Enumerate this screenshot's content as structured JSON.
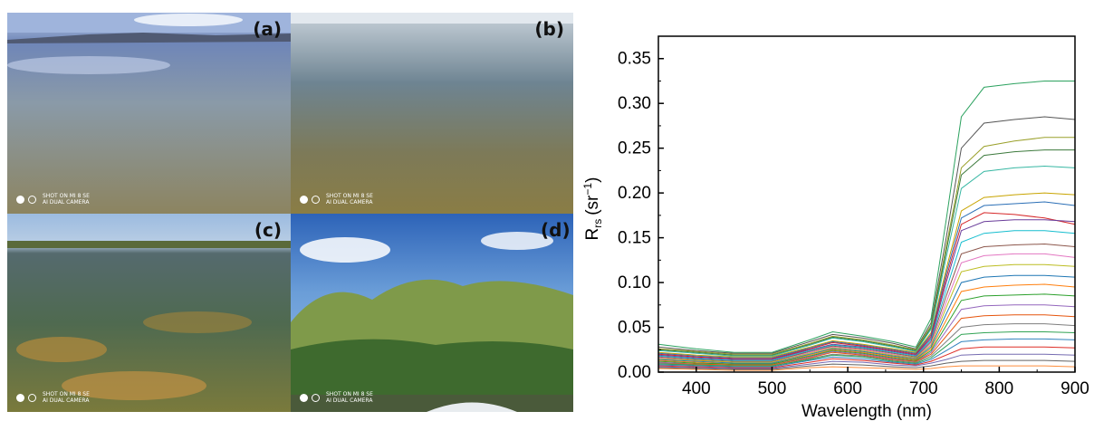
{
  "photos": {
    "panels": [
      {
        "label": "(a)",
        "watermark": [
          "SHOT ON MI 8 SE",
          "AI DUAL CAMERA"
        ]
      },
      {
        "label": "(b)",
        "watermark": [
          "SHOT ON MI 8 SE",
          "AI DUAL CAMERA"
        ]
      },
      {
        "label": "(c)",
        "watermark": [
          "SHOT ON MI 8 SE",
          "AI DUAL CAMERA"
        ]
      },
      {
        "label": "(d)",
        "watermark": [
          "SHOT ON MI 8 SE",
          "AI DUAL CAMERA"
        ]
      }
    ]
  },
  "chart_data": {
    "type": "line",
    "xlabel": "Wavelength (nm)",
    "ylabel_main": "R",
    "ylabel_sub": "rs",
    "ylabel_unit": "(sr",
    "ylabel_exp": "−1",
    "ylabel_close": ")",
    "xlim": [
      350,
      900
    ],
    "ylim": [
      0,
      0.375
    ],
    "xticks": [
      400,
      500,
      600,
      700,
      800,
      900
    ],
    "yticks": [
      0.0,
      0.05,
      0.1,
      0.15,
      0.2,
      0.25,
      0.3,
      0.35
    ],
    "ytick_labels": [
      "0.00",
      "0.05",
      "0.10",
      "0.15",
      "0.20",
      "0.25",
      "0.30",
      "0.35"
    ],
    "x": [
      350,
      400,
      450,
      500,
      550,
      580,
      620,
      660,
      690,
      710,
      730,
      750,
      780,
      820,
      860,
      900
    ],
    "series": [
      {
        "color": "#2ca25f",
        "values": [
          0.031,
          0.026,
          0.022,
          0.022,
          0.036,
          0.045,
          0.04,
          0.034,
          0.028,
          0.06,
          0.17,
          0.285,
          0.318,
          0.322,
          0.325,
          0.325
        ]
      },
      {
        "color": "#555555",
        "values": [
          0.028,
          0.024,
          0.021,
          0.021,
          0.034,
          0.042,
          0.038,
          0.032,
          0.026,
          0.055,
          0.15,
          0.25,
          0.278,
          0.282,
          0.285,
          0.282
        ]
      },
      {
        "color": "#9aa02a",
        "values": [
          0.026,
          0.023,
          0.02,
          0.02,
          0.032,
          0.04,
          0.036,
          0.03,
          0.025,
          0.052,
          0.14,
          0.228,
          0.252,
          0.258,
          0.262,
          0.262
        ]
      },
      {
        "color": "#3d7a3d",
        "values": [
          0.025,
          0.022,
          0.019,
          0.019,
          0.031,
          0.039,
          0.035,
          0.029,
          0.024,
          0.05,
          0.135,
          0.22,
          0.242,
          0.246,
          0.248,
          0.248
        ]
      },
      {
        "color": "#37b7a3",
        "values": [
          0.024,
          0.021,
          0.018,
          0.018,
          0.03,
          0.038,
          0.034,
          0.028,
          0.023,
          0.048,
          0.128,
          0.205,
          0.224,
          0.228,
          0.23,
          0.228
        ]
      },
      {
        "color": "#c8a400",
        "values": [
          0.022,
          0.019,
          0.017,
          0.017,
          0.028,
          0.035,
          0.031,
          0.026,
          0.022,
          0.044,
          0.115,
          0.18,
          0.195,
          0.198,
          0.2,
          0.198
        ]
      },
      {
        "color": "#2b6fb6",
        "values": [
          0.021,
          0.018,
          0.016,
          0.016,
          0.027,
          0.034,
          0.03,
          0.025,
          0.021,
          0.042,
          0.11,
          0.172,
          0.186,
          0.188,
          0.19,
          0.186
        ]
      },
      {
        "color": "#d62728",
        "values": [
          0.02,
          0.017,
          0.015,
          0.015,
          0.026,
          0.033,
          0.029,
          0.024,
          0.02,
          0.04,
          0.105,
          0.165,
          0.178,
          0.176,
          0.172,
          0.165
        ]
      },
      {
        "color": "#6a3d9a",
        "values": [
          0.019,
          0.016,
          0.014,
          0.014,
          0.025,
          0.031,
          0.028,
          0.023,
          0.019,
          0.038,
          0.1,
          0.158,
          0.168,
          0.17,
          0.17,
          0.168
        ]
      },
      {
        "color": "#17becf",
        "values": [
          0.018,
          0.015,
          0.013,
          0.013,
          0.024,
          0.03,
          0.027,
          0.022,
          0.018,
          0.036,
          0.092,
          0.145,
          0.155,
          0.158,
          0.158,
          0.155
        ]
      },
      {
        "color": "#8c564b",
        "values": [
          0.017,
          0.014,
          0.012,
          0.012,
          0.023,
          0.029,
          0.026,
          0.021,
          0.017,
          0.034,
          0.085,
          0.132,
          0.14,
          0.142,
          0.143,
          0.14
        ]
      },
      {
        "color": "#e377c2",
        "values": [
          0.016,
          0.013,
          0.011,
          0.011,
          0.022,
          0.028,
          0.025,
          0.02,
          0.016,
          0.032,
          0.078,
          0.122,
          0.13,
          0.132,
          0.132,
          0.128
        ]
      },
      {
        "color": "#bcbd22",
        "values": [
          0.015,
          0.013,
          0.011,
          0.011,
          0.021,
          0.027,
          0.024,
          0.019,
          0.016,
          0.03,
          0.072,
          0.112,
          0.118,
          0.12,
          0.12,
          0.118
        ]
      },
      {
        "color": "#1f77b4",
        "values": [
          0.014,
          0.012,
          0.01,
          0.01,
          0.02,
          0.026,
          0.023,
          0.018,
          0.015,
          0.028,
          0.065,
          0.1,
          0.106,
          0.108,
          0.108,
          0.106
        ]
      },
      {
        "color": "#ff7f0e",
        "values": [
          0.013,
          0.011,
          0.009,
          0.009,
          0.019,
          0.025,
          0.022,
          0.017,
          0.014,
          0.026,
          0.058,
          0.09,
          0.095,
          0.097,
          0.098,
          0.095
        ]
      },
      {
        "color": "#2ca02c",
        "values": [
          0.012,
          0.01,
          0.009,
          0.009,
          0.018,
          0.024,
          0.021,
          0.016,
          0.013,
          0.024,
          0.052,
          0.08,
          0.085,
          0.086,
          0.087,
          0.085
        ]
      },
      {
        "color": "#9467bd",
        "values": [
          0.011,
          0.009,
          0.008,
          0.008,
          0.017,
          0.023,
          0.02,
          0.015,
          0.012,
          0.022,
          0.046,
          0.07,
          0.074,
          0.075,
          0.075,
          0.073
        ]
      },
      {
        "color": "#e6550d",
        "values": [
          0.01,
          0.009,
          0.008,
          0.008,
          0.016,
          0.022,
          0.019,
          0.014,
          0.012,
          0.02,
          0.04,
          0.06,
          0.063,
          0.064,
          0.064,
          0.062
        ]
      },
      {
        "color": "#7f7f7f",
        "values": [
          0.01,
          0.008,
          0.007,
          0.007,
          0.015,
          0.02,
          0.018,
          0.013,
          0.011,
          0.018,
          0.034,
          0.05,
          0.053,
          0.054,
          0.054,
          0.052
        ]
      },
      {
        "color": "#31a354",
        "values": [
          0.009,
          0.008,
          0.007,
          0.007,
          0.014,
          0.019,
          0.017,
          0.012,
          0.01,
          0.016,
          0.029,
          0.042,
          0.044,
          0.045,
          0.045,
          0.044
        ]
      },
      {
        "color": "#3182bd",
        "values": [
          0.008,
          0.007,
          0.006,
          0.006,
          0.013,
          0.017,
          0.015,
          0.011,
          0.009,
          0.014,
          0.024,
          0.034,
          0.036,
          0.037,
          0.037,
          0.036
        ]
      },
      {
        "color": "#de2d26",
        "values": [
          0.007,
          0.006,
          0.005,
          0.005,
          0.011,
          0.015,
          0.013,
          0.01,
          0.008,
          0.012,
          0.019,
          0.026,
          0.028,
          0.028,
          0.028,
          0.027
        ]
      },
      {
        "color": "#756bb1",
        "values": [
          0.006,
          0.005,
          0.004,
          0.004,
          0.009,
          0.012,
          0.011,
          0.008,
          0.007,
          0.01,
          0.014,
          0.019,
          0.02,
          0.02,
          0.02,
          0.019
        ]
      },
      {
        "color": "#636363",
        "values": [
          0.005,
          0.004,
          0.003,
          0.003,
          0.007,
          0.009,
          0.008,
          0.006,
          0.005,
          0.007,
          0.01,
          0.012,
          0.013,
          0.013,
          0.013,
          0.012
        ]
      },
      {
        "color": "#fd8d3c",
        "values": [
          0.004,
          0.003,
          0.002,
          0.002,
          0.005,
          0.006,
          0.005,
          0.004,
          0.003,
          0.004,
          0.006,
          0.007,
          0.007,
          0.007,
          0.007,
          0.006
        ]
      }
    ]
  }
}
